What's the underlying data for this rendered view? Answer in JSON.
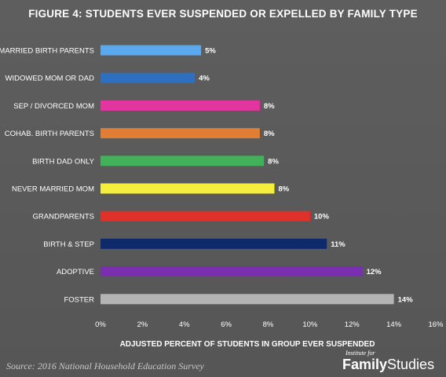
{
  "chart_data": {
    "type": "bar",
    "orientation": "horizontal",
    "title": "FIGURE 4: STUDENTS EVER SUSPENDED OR EXPELLED BY FAMILY TYPE",
    "xlabel": "ADJUSTED PERCENT OF STUDENTS IN GROUP EVER SUSPENDED",
    "ylabel": "",
    "xlim": [
      0,
      16
    ],
    "x_ticks": [
      "0%",
      "2%",
      "4%",
      "6%",
      "8%",
      "10%",
      "12%",
      "14%",
      "16%"
    ],
    "grid": false,
    "categories": [
      "MARRIED BIRTH PARENTS",
      "WIDOWED MOM OR DAD",
      "SEP / DIVORCED MOM",
      "COHAB. BIRTH PARENTS",
      "BIRTH DAD ONLY",
      "NEVER MARRIED MOM",
      "GRANDPARENTS",
      "BIRTH & STEP",
      "ADOPTIVE",
      "FOSTER"
    ],
    "values": [
      4.8,
      4.5,
      7.6,
      7.6,
      7.8,
      8.3,
      10.0,
      10.8,
      12.5,
      14.0
    ],
    "data_labels": [
      "5%",
      "4%",
      "8%",
      "8%",
      "8%",
      "8%",
      "10%",
      "11%",
      "12%",
      "14%"
    ],
    "colors": [
      "#5aa9ec",
      "#2f6fc0",
      "#e2359d",
      "#e07e36",
      "#43b05c",
      "#f6ee3c",
      "#e0302a",
      "#0f2a6b",
      "#7a2fb0",
      "#b4b4b4"
    ]
  },
  "footer": {
    "source": "Source: 2016 National Household Education Survey",
    "brand_small": "Institute for",
    "brand_bold": "Family",
    "brand_thin": "Studies"
  }
}
